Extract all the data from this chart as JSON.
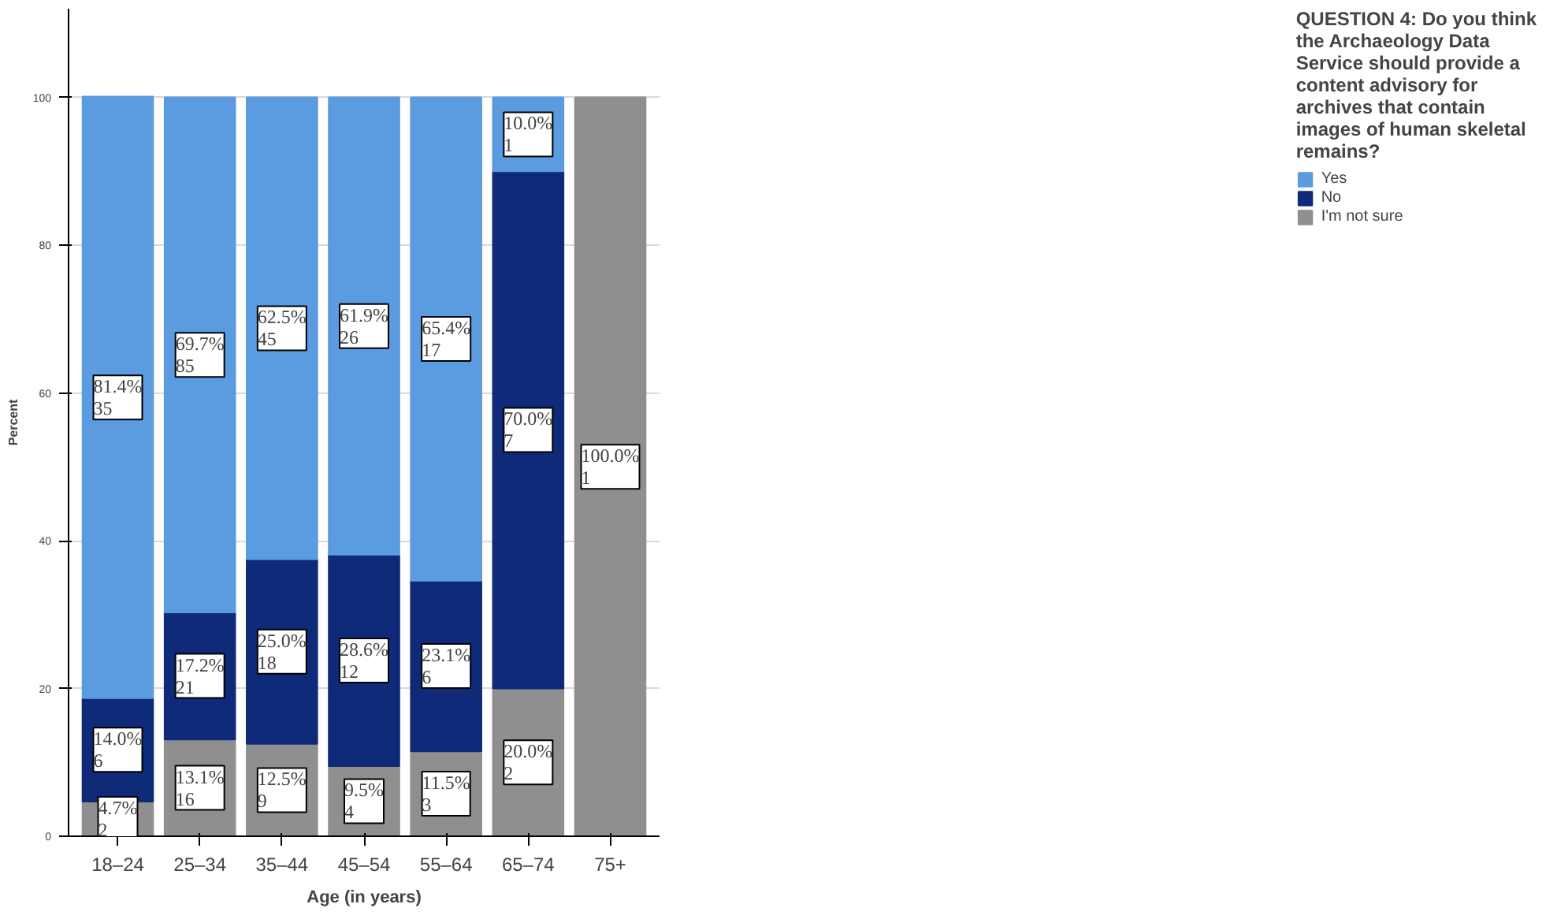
{
  "chart_data": {
    "type": "bar",
    "stacked": true,
    "legend_title": "QUESTION 4: Do you think the Archaeology Data Service should provide a content advisory for archives that contain images of human skeletal remains?",
    "xlabel": "Age (in years)",
    "ylabel": "Percent",
    "categories": [
      "18–24",
      "25–34",
      "35–44",
      "45–54",
      "55–64",
      "65–74",
      "75+"
    ],
    "series": [
      {
        "name": "I'm not sure",
        "color": "#8f8f8f",
        "values": [
          4.7,
          13.1,
          12.5,
          9.5,
          11.5,
          20.0,
          100.0
        ],
        "value_labels": [
          "4.7%\n2",
          "13.1%\n16",
          "12.5%\n9",
          "9.5%\n4",
          "11.5%\n3",
          "20.0%\n2",
          "100.0%\n1"
        ]
      },
      {
        "name": "No",
        "color": "#0f2a78",
        "values": [
          14.0,
          17.2,
          25.0,
          28.6,
          23.1,
          70.0,
          null
        ],
        "value_labels": [
          "14.0%\n6",
          "17.2%\n21",
          "25.0%\n18",
          "28.6%\n12",
          "23.1%\n6",
          "70.0%\n7",
          null
        ]
      },
      {
        "name": "Yes",
        "color": "#5b9be0",
        "values": [
          81.4,
          69.7,
          62.5,
          61.9,
          65.4,
          10.0,
          null
        ],
        "value_labels": [
          "81.4%\n35",
          "69.7%\n85",
          "62.5%\n45",
          "61.9%\n26",
          "65.4%\n17",
          "10.0%\n1",
          null
        ]
      }
    ],
    "ylim": [
      0,
      112
    ],
    "yticks": [
      0,
      20,
      40,
      60,
      80,
      100
    ],
    "grid": "y",
    "legend": "right"
  }
}
